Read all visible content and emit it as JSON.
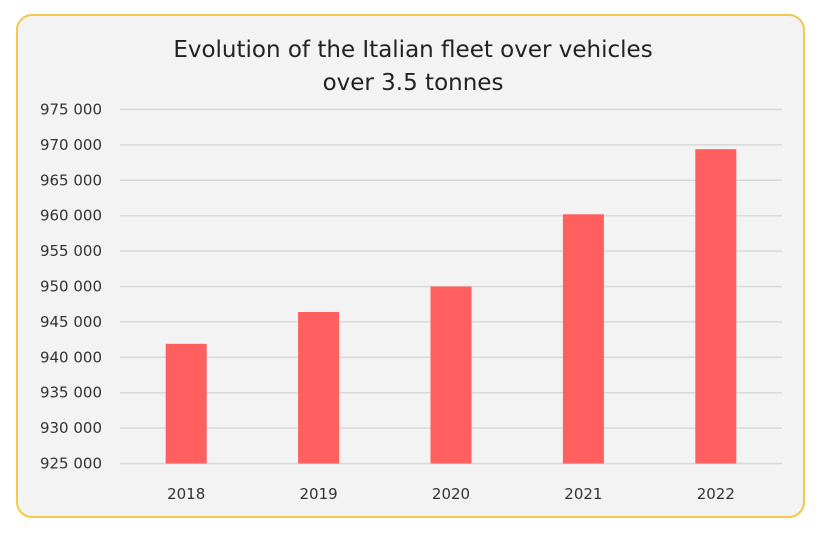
{
  "chart_data": {
    "type": "bar",
    "title_lines": [
      "Evolution of the Italian fleet over vehicles",
      "over 3.5 tonnes"
    ],
    "categories": [
      "2018",
      "2019",
      "2020",
      "2021",
      "2022"
    ],
    "values": [
      941900,
      946400,
      950000,
      960200,
      969400
    ],
    "ylim": [
      925000,
      975000
    ],
    "yticks": [
      925000,
      930000,
      935000,
      940000,
      945000,
      950000,
      955000,
      960000,
      965000,
      970000,
      975000
    ],
    "ytick_labels": [
      "925 000",
      "930 000",
      "935 000",
      "940 000",
      "945 000",
      "950 000",
      "955 000",
      "960 000",
      "965 000",
      "970 000",
      "975 000"
    ],
    "grid": true,
    "legend": "none",
    "colors": {
      "bar": "#ff5f5f",
      "border": "#f2c94c",
      "background": "#f3f3f3",
      "grid": "#d9d9d9"
    }
  }
}
